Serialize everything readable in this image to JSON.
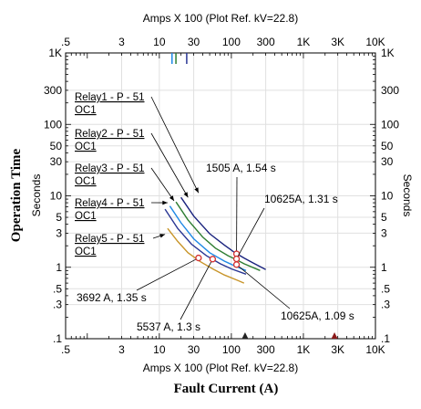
{
  "chart_data": {
    "type": "line",
    "x_scale": "log",
    "y_scale": "log",
    "xlim": [
      0.5,
      10000
    ],
    "ylim": [
      0.1,
      1000
    ],
    "top_axis_label": "Amps X 100 (Plot Ref. kV=22.8)",
    "bottom_axis_label": "Amps X 100 (Plot Ref. kV=22.8)",
    "xlabel": "Fault Current (A)",
    "ylabel": "Operation Time",
    "y_side_label": "Seconds",
    "x_ticks": [
      {
        "value": 0.5,
        "label": ".5"
      },
      {
        "value": 3,
        "label": "3"
      },
      {
        "value": 10,
        "label": "10"
      },
      {
        "value": 30,
        "label": "30"
      },
      {
        "value": 100,
        "label": "100"
      },
      {
        "value": 300,
        "label": "300"
      },
      {
        "value": 1000,
        "label": "1K"
      },
      {
        "value": 3000,
        "label": "3K"
      },
      {
        "value": 10000,
        "label": "10K"
      }
    ],
    "y_ticks": [
      {
        "value": 0.1,
        "label": ".1"
      },
      {
        "value": 0.3,
        "label": ".3"
      },
      {
        "value": 0.5,
        "label": ".5"
      },
      {
        "value": 1,
        "label": "1"
      },
      {
        "value": 3,
        "label": "3"
      },
      {
        "value": 5,
        "label": "5"
      },
      {
        "value": 10,
        "label": "10"
      },
      {
        "value": 30,
        "label": "30"
      },
      {
        "value": 50,
        "label": "50"
      },
      {
        "value": 100,
        "label": "100"
      },
      {
        "value": 300,
        "label": "300"
      },
      {
        "value": 1000,
        "label": "1K"
      }
    ],
    "series": [
      {
        "label": "Relay1 - P - 51",
        "sublabel": "OC1",
        "color": "#1a237e",
        "x": [
          20,
          30,
          50,
          80,
          110,
          150,
          200,
          300
        ],
        "y": [
          9.5,
          5.2,
          2.95,
          2.05,
          1.62,
          1.35,
          1.15,
          0.93
        ],
        "label_anchor": [
          35,
          11
        ]
      },
      {
        "label": "Relay2 - P - 51",
        "sublabel": "OC1",
        "color": "#2e7d32",
        "x": [
          17,
          25,
          40,
          60,
          90,
          120,
          150,
          250
        ],
        "y": [
          8.2,
          4.6,
          2.65,
          1.85,
          1.45,
          1.26,
          1.12,
          0.9
        ],
        "label_anchor": [
          25,
          9.5
        ]
      },
      {
        "label": "Relay3 - P - 51",
        "sublabel": "OC1",
        "color": "#1e88e5",
        "x": [
          14,
          20,
          30,
          50,
          80,
          110,
          160
        ],
        "y": [
          7.2,
          4.2,
          2.5,
          1.6,
          1.22,
          1.05,
          0.9
        ],
        "label_anchor": [
          16,
          8.5
        ]
      },
      {
        "label": "Relay4 - P - 51",
        "sublabel": "OC1",
        "color": "#283593",
        "x": [
          12,
          18,
          28,
          45,
          70,
          100,
          160
        ],
        "y": [
          6.5,
          3.5,
          2.1,
          1.45,
          1.12,
          0.95,
          0.8
        ],
        "label_anchor": [
          13,
          8
        ]
      },
      {
        "label": "Relay5 - P - 51",
        "sublabel": "OC1",
        "color": "#c8952a",
        "x": [
          13,
          18,
          25,
          37,
          55,
          80,
          120,
          150
        ],
        "y": [
          3.5,
          2.3,
          1.6,
          1.2,
          0.95,
          0.78,
          0.66,
          0.6
        ],
        "label_anchor": [
          12,
          2.9
        ]
      }
    ],
    "annotations": [
      {
        "text": "1505 A, 1.54 s",
        "point": [
          118,
          1.54
        ],
        "label_pos": [
          90,
          25
        ]
      },
      {
        "text": "10625A, 1.31 s",
        "point": [
          118,
          1.31
        ],
        "label_pos": [
          400,
          10
        ]
      },
      {
        "text": "3692 A, 1.35 s",
        "point": [
          35,
          1.35
        ],
        "label_pos": [
          5,
          0.4
        ]
      },
      {
        "text": "5537 A, 1.3 s",
        "point": [
          55,
          1.3
        ],
        "label_pos": [
          30,
          0.17
        ]
      },
      {
        "text": "10625A, 1.09 s",
        "point": [
          118,
          1.09
        ],
        "label_pos": [
          400,
          0.23
        ]
      }
    ],
    "top_markers": [
      {
        "x": 15,
        "color": "#1e88e5"
      },
      {
        "x": 17,
        "color": "#2e7d32"
      },
      {
        "x": 24,
        "color": "#283593"
      }
    ],
    "bottom_markers": [
      {
        "x": 155,
        "color": "#222222"
      },
      {
        "x": 2700,
        "color": "#8b1a1a"
      }
    ]
  }
}
